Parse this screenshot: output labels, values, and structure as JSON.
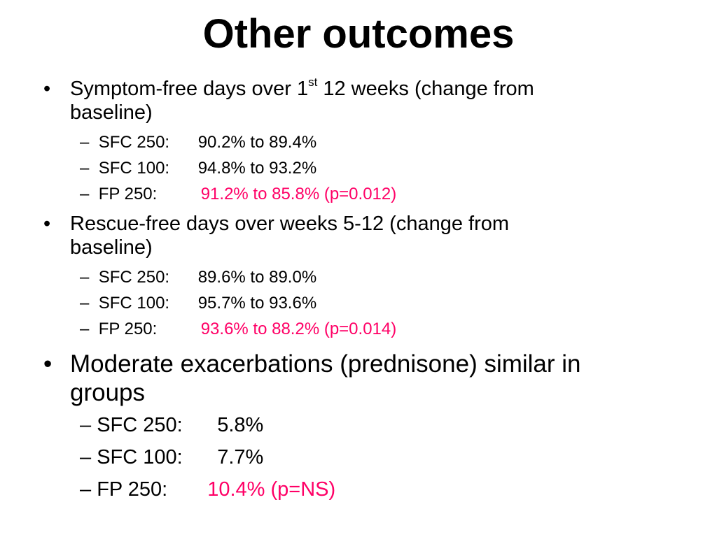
{
  "title": "Other outcomes",
  "colors": {
    "text": "#000000",
    "highlight": "#ff0066",
    "background": "#ffffff"
  },
  "bullet_symbol": "•",
  "dash_symbol": "–",
  "sections": [
    {
      "heading_pre": "Symptom-free days over 1",
      "heading_sup": "st",
      "heading_post": " 12 weeks (change from",
      "heading_line2": "baseline)",
      "items": [
        {
          "label": "SFC 250:",
          "value": "90.2% to 89.4%"
        },
        {
          "label": "SFC 100:",
          "value": "94.8% to 93.2%"
        },
        {
          "label": "FP 250:",
          "value": "91.2% to 85.8% (p=0.012)"
        }
      ]
    },
    {
      "heading_line1": "Rescue-free days over weeks 5-12 (change from",
      "heading_line2": "baseline)",
      "items": [
        {
          "label": "SFC 250:",
          "value": "89.6% to 89.0%"
        },
        {
          "label": "SFC 100:",
          "value": "95.7% to 93.6%"
        },
        {
          "label": "FP 250:",
          "value": "93.6% to 88.2% (p=0.014)"
        }
      ]
    },
    {
      "heading_line1": "Moderate exacerbations (prednisone) similar in",
      "heading_line2": "groups",
      "items": [
        {
          "label": "SFC 250:",
          "value": "5.8%"
        },
        {
          "label": "SFC 100:",
          "value": "7.7%"
        },
        {
          "label": "FP 250:",
          "value": "10.4% (p=NS)"
        }
      ]
    }
  ]
}
